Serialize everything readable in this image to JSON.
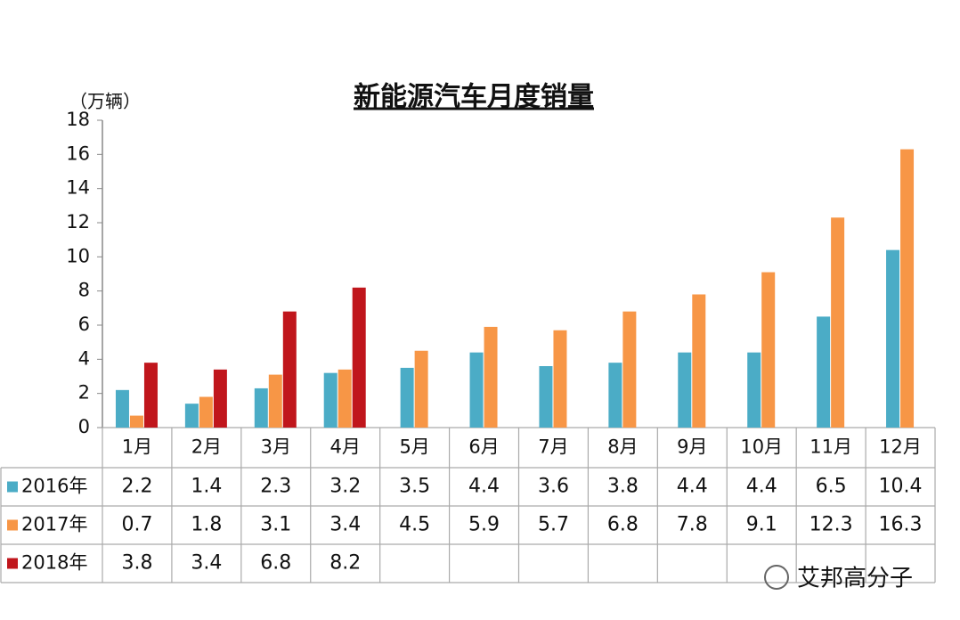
{
  "chart_data": {
    "type": "bar",
    "title": "新能源汽车月度销量",
    "y_unit": "（万辆）",
    "categories": [
      "1月",
      "2月",
      "3月",
      "4月",
      "5月",
      "6月",
      "7月",
      "8月",
      "9月",
      "10月",
      "11月",
      "12月"
    ],
    "series": [
      {
        "name": "2016年",
        "color": "#4bacc6",
        "values": [
          2.2,
          1.4,
          2.3,
          3.2,
          3.5,
          4.4,
          3.6,
          3.8,
          4.4,
          4.4,
          6.5,
          10.4
        ]
      },
      {
        "name": "2017年",
        "color": "#f79646",
        "values": [
          0.7,
          1.8,
          3.1,
          3.4,
          4.5,
          5.9,
          5.7,
          6.8,
          7.8,
          9.1,
          12.3,
          16.3
        ]
      },
      {
        "name": "2018年",
        "color": "#c0161c",
        "values": [
          3.8,
          3.4,
          6.8,
          8.2,
          null,
          null,
          null,
          null,
          null,
          null,
          null,
          null
        ]
      }
    ],
    "ylim": [
      0,
      18
    ],
    "yticks": [
      0,
      2,
      4,
      6,
      8,
      10,
      12,
      14,
      16,
      18
    ],
    "grid": false,
    "watermark": "艾邦高分子"
  }
}
